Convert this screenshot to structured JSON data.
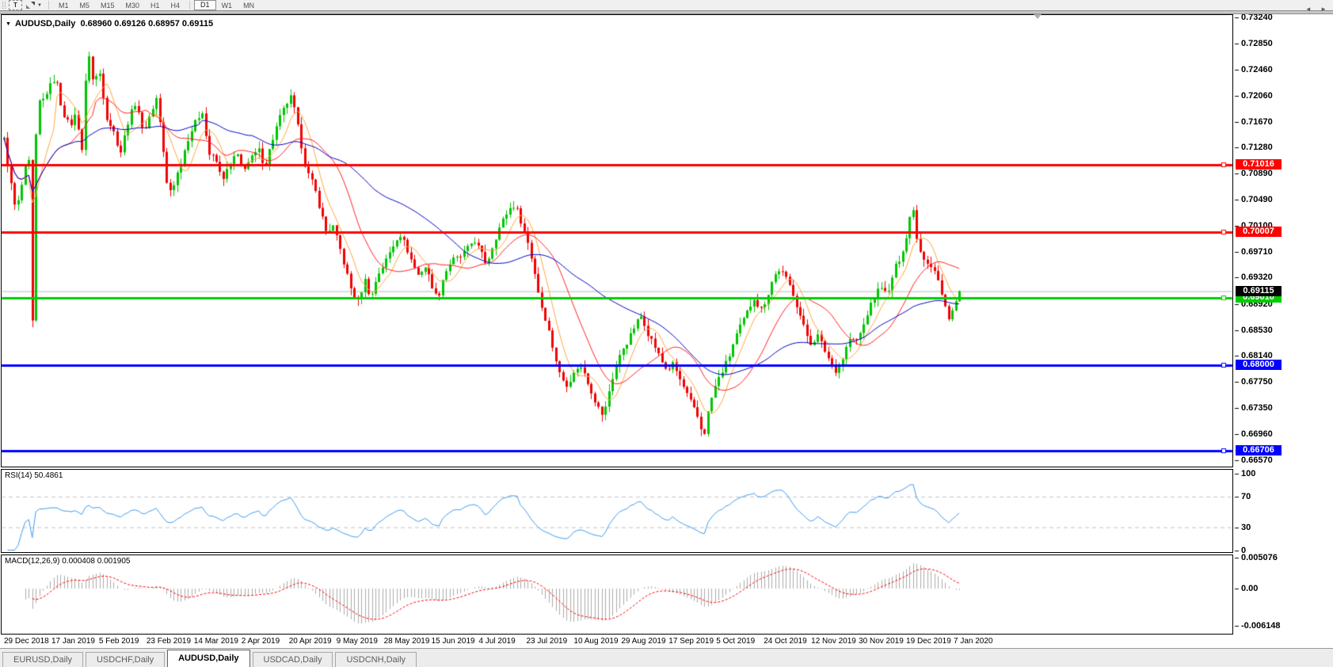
{
  "toolbar": {
    "text_tool": "T",
    "timeframes": [
      "M1",
      "M5",
      "M15",
      "M30",
      "H1",
      "H4",
      "D1",
      "W1",
      "MN"
    ],
    "active_timeframe": "D1"
  },
  "icons": {
    "symbol_dropdown": "▼",
    "tool_caret": "▼",
    "tab_left": "◄",
    "tab_right": "►"
  },
  "chart": {
    "symbol": "AUDUSD,Daily",
    "ohlc_text": "0.68960 0.69126 0.68957 0.69115"
  },
  "chart_data": {
    "type": "candlestick",
    "title": "AUDUSD,Daily",
    "open": 0.6896,
    "high": 0.69126,
    "low": 0.68957,
    "close": 0.69115,
    "ylim": [
      0.6647,
      0.73279
    ],
    "grid": false,
    "candle_colors": {
      "bull": "#00C400",
      "bear": "#F00000"
    },
    "y_ticks": [
      "0.73240",
      "0.72850",
      "0.72460",
      "0.72060",
      "0.71670",
      "0.71280",
      "0.70890",
      "0.70490",
      "0.70100",
      "0.69710",
      "0.69320",
      "0.68920",
      "0.68530",
      "0.68140",
      "0.67750",
      "0.67350",
      "0.66960",
      "0.66570"
    ],
    "x_labels": [
      "29 Dec 2018",
      "17 Jan 2019",
      "5 Feb 2019",
      "23 Feb 2019",
      "14 Mar 2019",
      "2 Apr 2019",
      "20 Apr 2019",
      "9 May 2019",
      "28 May 2019",
      "15 Jun 2019",
      "4 Jul 2019",
      "23 Jul 2019",
      "10 Aug 2019",
      "29 Aug 2019",
      "17 Sep 2019",
      "5 Oct 2019",
      "24 Oct 2019",
      "12 Nov 2019",
      "30 Nov 2019",
      "19 Dec 2019",
      "7 Jan 2020"
    ],
    "levels": [
      {
        "price": 0.71016,
        "label": "0.71016",
        "color": "#FF0000",
        "thickness": 3
      },
      {
        "price": 0.70007,
        "label": "0.70007",
        "color": "#FF0000",
        "thickness": 3
      },
      {
        "price": 0.6901,
        "label": "0.69010",
        "color": "#00CC00",
        "thickness": 3
      },
      {
        "price": 0.68,
        "label": "0.68000",
        "color": "#0000FF",
        "thickness": 3
      },
      {
        "price": 0.66706,
        "label": "0.66706",
        "color": "#0000FF",
        "thickness": 3
      }
    ],
    "current_price": {
      "value": 0.69115,
      "label": "0.69115",
      "line_color": "#B8B8B8",
      "label_bg": "#000000"
    },
    "moving_averages": [
      {
        "name": "fast",
        "period": 7,
        "color": "#FFA640"
      },
      {
        "name": "medium",
        "period": 18,
        "color": "#FF2020"
      },
      {
        "name": "slow",
        "period": 48,
        "color": "#0000C8"
      }
    ],
    "price_path": [
      [
        5,
        0.714
      ],
      [
        12,
        0.7085
      ],
      [
        20,
        0.703
      ],
      [
        28,
        0.7075
      ],
      [
        36,
        0.712
      ],
      [
        41,
        0.685
      ],
      [
        46,
        0.72
      ],
      [
        52,
        0.7195
      ],
      [
        60,
        0.7215
      ],
      [
        70,
        0.7235
      ],
      [
        78,
        0.7185
      ],
      [
        88,
        0.716
      ],
      [
        96,
        0.718
      ],
      [
        104,
        0.712
      ],
      [
        110,
        0.729
      ],
      [
        116,
        0.723
      ],
      [
        126,
        0.724
      ],
      [
        134,
        0.7175
      ],
      [
        144,
        0.715
      ],
      [
        152,
        0.712
      ],
      [
        162,
        0.717
      ],
      [
        172,
        0.72
      ],
      [
        180,
        0.715
      ],
      [
        190,
        0.718
      ],
      [
        198,
        0.7205
      ],
      [
        204,
        0.714
      ],
      [
        212,
        0.7058
      ],
      [
        220,
        0.7075
      ],
      [
        228,
        0.7105
      ],
      [
        238,
        0.7145
      ],
      [
        248,
        0.717
      ],
      [
        256,
        0.7185
      ],
      [
        262,
        0.712
      ],
      [
        272,
        0.711
      ],
      [
        280,
        0.708
      ],
      [
        290,
        0.71
      ],
      [
        298,
        0.712
      ],
      [
        306,
        0.7095
      ],
      [
        316,
        0.711
      ],
      [
        326,
        0.7125
      ],
      [
        334,
        0.71
      ],
      [
        344,
        0.714
      ],
      [
        352,
        0.717
      ],
      [
        362,
        0.7195
      ],
      [
        368,
        0.7205
      ],
      [
        378,
        0.7145
      ],
      [
        386,
        0.7095
      ],
      [
        396,
        0.707
      ],
      [
        404,
        0.7035
      ],
      [
        412,
        0.7
      ],
      [
        420,
        0.701
      ],
      [
        428,
        0.698
      ],
      [
        436,
        0.6945
      ],
      [
        444,
        0.691
      ],
      [
        452,
        0.6895
      ],
      [
        460,
        0.693
      ],
      [
        468,
        0.69
      ],
      [
        476,
        0.6935
      ],
      [
        486,
        0.6955
      ],
      [
        496,
        0.698
      ],
      [
        504,
        0.7
      ],
      [
        512,
        0.698
      ],
      [
        520,
        0.6955
      ],
      [
        528,
        0.6935
      ],
      [
        536,
        0.695
      ],
      [
        544,
        0.6925
      ],
      [
        552,
        0.6898
      ],
      [
        560,
        0.6935
      ],
      [
        570,
        0.6958
      ],
      [
        580,
        0.6962
      ],
      [
        590,
        0.6975
      ],
      [
        598,
        0.699
      ],
      [
        606,
        0.6972
      ],
      [
        614,
        0.6952
      ],
      [
        624,
        0.6988
      ],
      [
        632,
        0.7012
      ],
      [
        642,
        0.7035
      ],
      [
        650,
        0.7042
      ],
      [
        658,
        0.7015
      ],
      [
        666,
        0.6985
      ],
      [
        674,
        0.6945
      ],
      [
        682,
        0.6895
      ],
      [
        690,
        0.6865
      ],
      [
        698,
        0.6825
      ],
      [
        706,
        0.6788
      ],
      [
        714,
        0.677
      ],
      [
        722,
        0.6782
      ],
      [
        730,
        0.68
      ],
      [
        738,
        0.6788
      ],
      [
        746,
        0.6762
      ],
      [
        754,
        0.6738
      ],
      [
        762,
        0.6722
      ],
      [
        770,
        0.6768
      ],
      [
        778,
        0.68
      ],
      [
        786,
        0.6825
      ],
      [
        794,
        0.684
      ],
      [
        802,
        0.6862
      ],
      [
        810,
        0.6875
      ],
      [
        818,
        0.6848
      ],
      [
        826,
        0.683
      ],
      [
        834,
        0.6808
      ],
      [
        842,
        0.6792
      ],
      [
        850,
        0.6802
      ],
      [
        858,
        0.6778
      ],
      [
        866,
        0.6758
      ],
      [
        874,
        0.6738
      ],
      [
        882,
        0.6718
      ],
      [
        888,
        0.669
      ],
      [
        896,
        0.6742
      ],
      [
        904,
        0.6772
      ],
      [
        912,
        0.6792
      ],
      [
        920,
        0.6812
      ],
      [
        928,
        0.6842
      ],
      [
        936,
        0.6862
      ],
      [
        944,
        0.6882
      ],
      [
        952,
        0.6902
      ],
      [
        960,
        0.6882
      ],
      [
        968,
        0.6902
      ],
      [
        976,
        0.6932
      ],
      [
        984,
        0.6945
      ],
      [
        992,
        0.693
      ],
      [
        1000,
        0.6912
      ],
      [
        1008,
        0.6882
      ],
      [
        1016,
        0.6852
      ],
      [
        1024,
        0.6832
      ],
      [
        1032,
        0.6845
      ],
      [
        1040,
        0.6825
      ],
      [
        1048,
        0.6805
      ],
      [
        1056,
        0.679
      ],
      [
        1064,
        0.6812
      ],
      [
        1072,
        0.684
      ],
      [
        1080,
        0.6835
      ],
      [
        1088,
        0.6852
      ],
      [
        1096,
        0.6882
      ],
      [
        1104,
        0.6902
      ],
      [
        1112,
        0.6922
      ],
      [
        1120,
        0.6902
      ],
      [
        1128,
        0.6942
      ],
      [
        1136,
        0.6962
      ],
      [
        1144,
        0.6992
      ],
      [
        1152,
        0.7047
      ],
      [
        1158,
        0.6985
      ],
      [
        1166,
        0.6962
      ],
      [
        1174,
        0.6952
      ],
      [
        1182,
        0.6938
      ],
      [
        1190,
        0.6898
      ],
      [
        1198,
        0.6872
      ],
      [
        1206,
        0.6893
      ],
      [
        1211,
        0.69115
      ]
    ],
    "rsi": {
      "label": "RSI(14) 50.4861",
      "period": 14,
      "value": 50.4861,
      "ticks": [
        "100",
        "70",
        "30",
        "0"
      ],
      "tick_values": [
        100,
        70,
        30,
        0
      ],
      "dashed_levels": [
        70,
        30
      ],
      "line_color": "#3E9AEF",
      "level_color": "#C4C4C4",
      "ylim": [
        0,
        100
      ]
    },
    "macd": {
      "label": "MACD(12,26,9) 0.000408 0.001905",
      "fast": 12,
      "slow": 26,
      "signal": 9,
      "macd_value": 0.000408,
      "signal_value": 0.001905,
      "ticks": [
        "0.005076",
        "0.00",
        "-0.006148"
      ],
      "tick_values": [
        0.005076,
        0,
        -0.006148
      ],
      "histogram_color": "#ABABAB",
      "signal_color": "#FF0000"
    }
  },
  "tabs": {
    "items": [
      {
        "label": "EURUSD,Daily",
        "active": false
      },
      {
        "label": "USDCHF,Daily",
        "active": false
      },
      {
        "label": "AUDUSD,Daily",
        "active": true
      },
      {
        "label": "USDCAD,Daily",
        "active": false
      },
      {
        "label": "USDCNH,Daily",
        "active": false
      }
    ]
  }
}
